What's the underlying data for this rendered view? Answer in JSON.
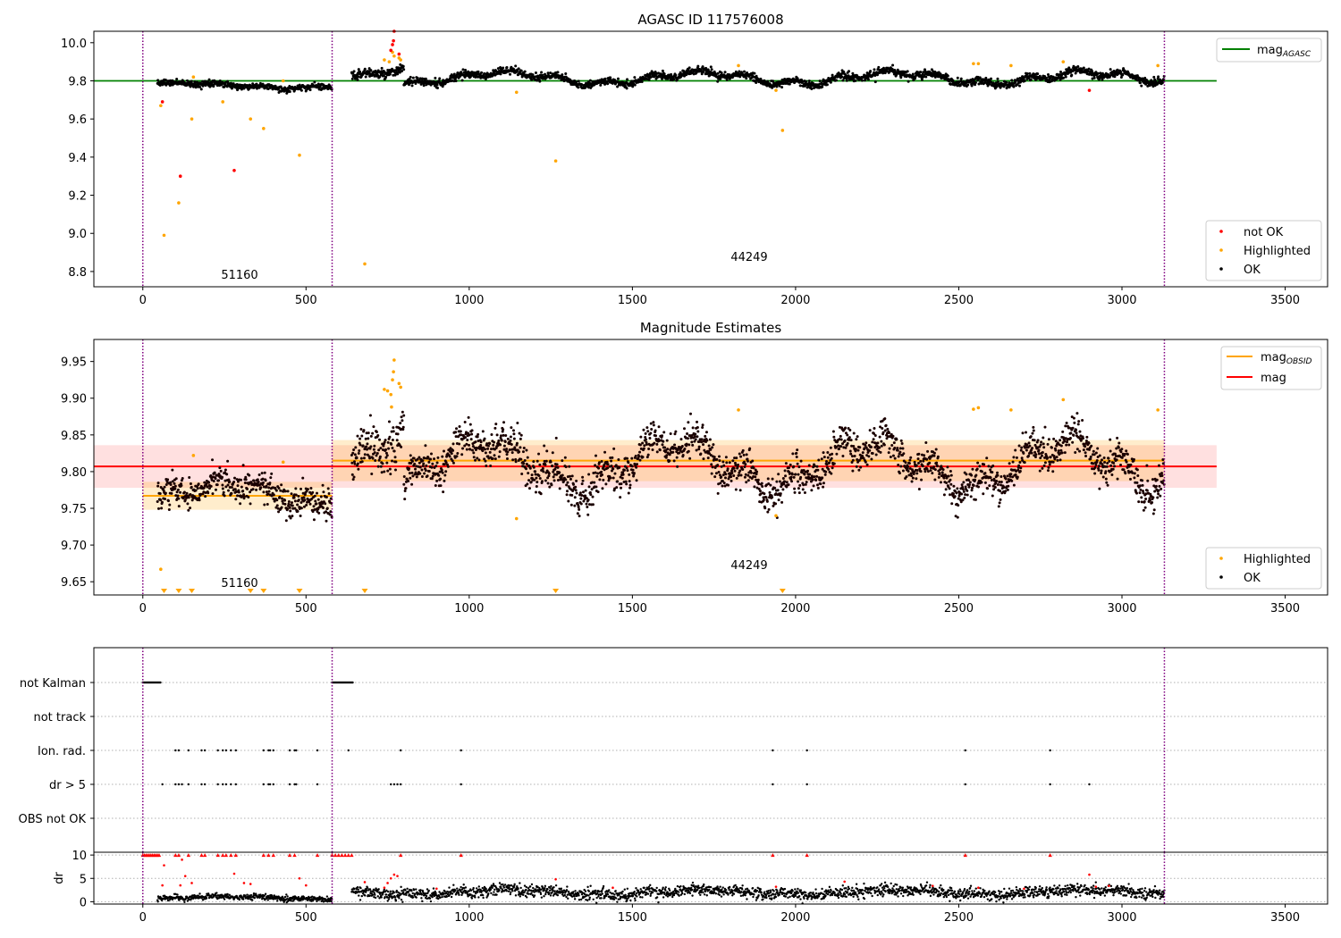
{
  "chart_data": [
    {
      "type": "scatter",
      "title": "AGASC ID 117576008",
      "xlim": [
        -150,
        3630
      ],
      "ylim": [
        8.72,
        10.06
      ],
      "xticks": [
        0,
        500,
        1000,
        1500,
        2000,
        2500,
        3000,
        3500
      ],
      "yticks": [
        8.8,
        9.0,
        9.2,
        9.4,
        9.6,
        9.8,
        10.0
      ],
      "ytick_labels": [
        "8.8",
        "9.0",
        "9.2",
        "9.4",
        "9.6",
        "9.8",
        "10.0"
      ],
      "obsid_boundaries": [
        0,
        580,
        3130
      ],
      "obsid_labels": [
        {
          "text": "51160",
          "x": 290,
          "y": 8.77
        },
        {
          "text": "44249",
          "x": 1860,
          "y": 8.86
        }
      ],
      "lines": [
        {
          "name": "mag_AGASC",
          "color": "#008000",
          "x": [
            -150,
            3290
          ],
          "y": [
            9.8,
            9.8
          ]
        }
      ],
      "legend_lines": {
        "label": "mag",
        "sub": "AGASC",
        "position": "upper-right"
      },
      "legend_points": {
        "position": "lower-right",
        "entries": [
          {
            "label": "not OK",
            "color": "#ff0000"
          },
          {
            "label": "Highlighted",
            "color": "#ffa500"
          },
          {
            "label": "OK",
            "color": "#000000"
          }
        ]
      },
      "ok_segments": [
        {
          "x0": 45,
          "x1": 580,
          "base": 9.775,
          "amp": 0.012,
          "noise": 0.008
        },
        {
          "x0": 640,
          "x1": 800,
          "base": 9.84,
          "amp": 0.025,
          "noise": 0.012
        },
        {
          "x0": 800,
          "x1": 3130,
          "base": 9.815,
          "amp": 0.03,
          "noise": 0.01
        }
      ],
      "highlighted_points": [
        {
          "x": 55,
          "y": 9.67
        },
        {
          "x": 65,
          "y": 8.99
        },
        {
          "x": 110,
          "y": 9.16
        },
        {
          "x": 150,
          "y": 9.6
        },
        {
          "x": 155,
          "y": 9.82
        },
        {
          "x": 245,
          "y": 9.69
        },
        {
          "x": 330,
          "y": 9.6
        },
        {
          "x": 370,
          "y": 9.55
        },
        {
          "x": 430,
          "y": 9.8
        },
        {
          "x": 480,
          "y": 9.41
        },
        {
          "x": 680,
          "y": 8.84
        },
        {
          "x": 740,
          "y": 9.91
        },
        {
          "x": 755,
          "y": 9.9
        },
        {
          "x": 765,
          "y": 9.95
        },
        {
          "x": 770,
          "y": 9.93
        },
        {
          "x": 785,
          "y": 9.92
        },
        {
          "x": 790,
          "y": 9.91
        },
        {
          "x": 1145,
          "y": 9.74
        },
        {
          "x": 1265,
          "y": 9.38
        },
        {
          "x": 1825,
          "y": 9.88
        },
        {
          "x": 1940,
          "y": 9.75
        },
        {
          "x": 1960,
          "y": 9.54
        },
        {
          "x": 2545,
          "y": 9.89
        },
        {
          "x": 2560,
          "y": 9.89
        },
        {
          "x": 2660,
          "y": 9.88
        },
        {
          "x": 2820,
          "y": 9.9
        },
        {
          "x": 3110,
          "y": 9.88
        }
      ],
      "not_ok_points": [
        {
          "x": 60,
          "y": 9.69
        },
        {
          "x": 115,
          "y": 9.3
        },
        {
          "x": 280,
          "y": 9.33
        },
        {
          "x": 760,
          "y": 9.96
        },
        {
          "x": 765,
          "y": 9.99
        },
        {
          "x": 768,
          "y": 10.01
        },
        {
          "x": 770,
          "y": 10.06
        },
        {
          "x": 785,
          "y": 9.94
        },
        {
          "x": 2900,
          "y": 9.75
        }
      ]
    },
    {
      "type": "scatter",
      "title": "Magnitude Estimates",
      "xlim": [
        -150,
        3630
      ],
      "ylim": [
        9.632,
        9.98
      ],
      "xticks": [
        0,
        500,
        1000,
        1500,
        2000,
        2500,
        3000,
        3500
      ],
      "yticks": [
        9.65,
        9.7,
        9.75,
        9.8,
        9.85,
        9.9,
        9.95
      ],
      "ytick_labels": [
        "9.65",
        "9.70",
        "9.75",
        "9.80",
        "9.85",
        "9.90",
        "9.95"
      ],
      "obsid_boundaries": [
        0,
        580,
        3130
      ],
      "obsid_labels": [
        {
          "text": "51160",
          "x": 290,
          "y": 9.645
        },
        {
          "text": "44249",
          "x": 1860,
          "y": 9.67
        }
      ],
      "bands": [
        {
          "color": "#ff0000",
          "opacity": 0.12,
          "x0": -150,
          "x1": 3290,
          "y0": 9.778,
          "y1": 9.836
        },
        {
          "color": "#ffa500",
          "opacity": 0.2,
          "x0": 0,
          "x1": 580,
          "y0": 9.748,
          "y1": 9.786
        },
        {
          "color": "#ffa500",
          "opacity": 0.2,
          "x0": 580,
          "x1": 3130,
          "y0": 9.787,
          "y1": 9.843
        }
      ],
      "lines": [
        {
          "name": "mag",
          "color": "#ff0000",
          "x": [
            -150,
            3290
          ],
          "y": [
            9.807,
            9.807
          ]
        },
        {
          "name": "mag_OBSID",
          "color": "#ffa500",
          "x": [
            0,
            580
          ],
          "y": [
            9.767,
            9.767
          ]
        },
        {
          "name": "mag_OBSID",
          "color": "#ffa500",
          "x": [
            580,
            3130
          ],
          "y": [
            9.815,
            9.815
          ]
        }
      ],
      "legend_lines": {
        "position": "upper-right",
        "entries": [
          {
            "label": "mag",
            "sub": "OBSID",
            "color": "#ffa500"
          },
          {
            "label": "mag",
            "sub": "",
            "color": "#ff0000"
          }
        ]
      },
      "legend_points": {
        "position": "lower-right",
        "entries": [
          {
            "label": "Highlighted",
            "color": "#ffa500"
          },
          {
            "label": "OK",
            "color": "#000000"
          }
        ]
      },
      "ok_segments": [
        {
          "x0": 45,
          "x1": 580,
          "base": 9.77,
          "amp": 0.015,
          "noise": 0.01
        },
        {
          "x0": 640,
          "x1": 800,
          "base": 9.835,
          "amp": 0.025,
          "noise": 0.015
        },
        {
          "x0": 800,
          "x1": 3130,
          "base": 9.81,
          "amp": 0.03,
          "noise": 0.012
        }
      ],
      "highlighted_points": [
        {
          "x": 55,
          "y": 9.667
        },
        {
          "x": 155,
          "y": 9.822
        },
        {
          "x": 430,
          "y": 9.813
        },
        {
          "x": 740,
          "y": 9.912
        },
        {
          "x": 750,
          "y": 9.91
        },
        {
          "x": 760,
          "y": 9.905
        },
        {
          "x": 762,
          "y": 9.888
        },
        {
          "x": 765,
          "y": 9.925
        },
        {
          "x": 768,
          "y": 9.936
        },
        {
          "x": 770,
          "y": 9.952
        },
        {
          "x": 785,
          "y": 9.92
        },
        {
          "x": 790,
          "y": 9.915
        },
        {
          "x": 1145,
          "y": 9.736
        },
        {
          "x": 1825,
          "y": 9.884
        },
        {
          "x": 1940,
          "y": 9.74
        },
        {
          "x": 2545,
          "y": 9.885
        },
        {
          "x": 2560,
          "y": 9.887
        },
        {
          "x": 2660,
          "y": 9.884
        },
        {
          "x": 2820,
          "y": 9.898
        },
        {
          "x": 3110,
          "y": 9.884
        }
      ],
      "below_markers": [
        65,
        110,
        150,
        330,
        370,
        480,
        680,
        1265,
        1960
      ]
    },
    {
      "type": "scatter",
      "xlim": [
        -150,
        3630
      ],
      "categories": [
        "not Kalman",
        "not track",
        "Ion. rad.",
        "dr > 5",
        "OBS not OK"
      ],
      "flag_points": {
        "not Kalman": {
          "ranges": [
            [
              0,
              55
            ],
            [
              580,
              645
            ]
          ]
        },
        "not track": {
          "x": []
        },
        "Ion. rad.": {
          "x": [
            100,
            110,
            140,
            180,
            190,
            230,
            245,
            255,
            270,
            285,
            370,
            385,
            390,
            400,
            450,
            465,
            470,
            535,
            630,
            790,
            975,
            1930,
            2035,
            2520,
            2780
          ]
        },
        "dr > 5": {
          "x": [
            60,
            100,
            110,
            120,
            140,
            180,
            190,
            230,
            245,
            255,
            270,
            285,
            370,
            385,
            390,
            400,
            450,
            465,
            470,
            535,
            760,
            770,
            780,
            790,
            975,
            1930,
            2035,
            2520,
            2780,
            2900
          ]
        },
        "OBS not OK": {
          "x": []
        }
      },
      "obsid_boundaries": [
        0,
        580,
        3130
      ]
    },
    {
      "type": "scatter",
      "ylabel": "dr",
      "xlim": [
        -150,
        3630
      ],
      "ylim": [
        -0.5,
        10.6
      ],
      "xticks": [
        0,
        500,
        1000,
        1500,
        2000,
        2500,
        3000,
        3500
      ],
      "yticks": [
        0,
        5,
        10
      ],
      "ytick_labels": [
        "0",
        "5",
        "10"
      ],
      "obsid_boundaries": [
        0,
        580,
        3130
      ],
      "ok_segments": [
        {
          "x0": 45,
          "x1": 580,
          "base": 0.8,
          "amp": 0.3,
          "noise": 0.3
        },
        {
          "x0": 640,
          "x1": 3130,
          "base": 2.0,
          "amp": 0.5,
          "noise": 0.6
        }
      ],
      "capped_points_x": [
        0,
        5,
        10,
        15,
        20,
        25,
        30,
        35,
        40,
        45,
        50,
        100,
        110,
        140,
        180,
        190,
        230,
        245,
        255,
        270,
        285,
        370,
        385,
        400,
        450,
        465,
        535,
        580,
        590,
        600,
        610,
        620,
        630,
        640,
        790,
        975,
        1930,
        2035,
        2520,
        2780
      ],
      "red_points": [
        {
          "x": 60,
          "y": 3.5
        },
        {
          "x": 65,
          "y": 7.8
        },
        {
          "x": 115,
          "y": 3.5
        },
        {
          "x": 120,
          "y": 9.0
        },
        {
          "x": 130,
          "y": 5.5
        },
        {
          "x": 150,
          "y": 4.0
        },
        {
          "x": 280,
          "y": 6.0
        },
        {
          "x": 310,
          "y": 4.0
        },
        {
          "x": 330,
          "y": 3.8
        },
        {
          "x": 480,
          "y": 5.0
        },
        {
          "x": 500,
          "y": 3.5
        },
        {
          "x": 680,
          "y": 4.2
        },
        {
          "x": 740,
          "y": 3.0
        },
        {
          "x": 750,
          "y": 4.0
        },
        {
          "x": 760,
          "y": 5.0
        },
        {
          "x": 770,
          "y": 5.8
        },
        {
          "x": 780,
          "y": 5.5
        },
        {
          "x": 900,
          "y": 2.8
        },
        {
          "x": 1265,
          "y": 4.8
        },
        {
          "x": 1440,
          "y": 3.0
        },
        {
          "x": 1940,
          "y": 3.2
        },
        {
          "x": 2150,
          "y": 4.3
        },
        {
          "x": 2420,
          "y": 3.4
        },
        {
          "x": 2560,
          "y": 3.0
        },
        {
          "x": 2700,
          "y": 2.8
        },
        {
          "x": 2900,
          "y": 5.8
        },
        {
          "x": 2920,
          "y": 3.2
        },
        {
          "x": 2960,
          "y": 3.4
        }
      ]
    }
  ]
}
